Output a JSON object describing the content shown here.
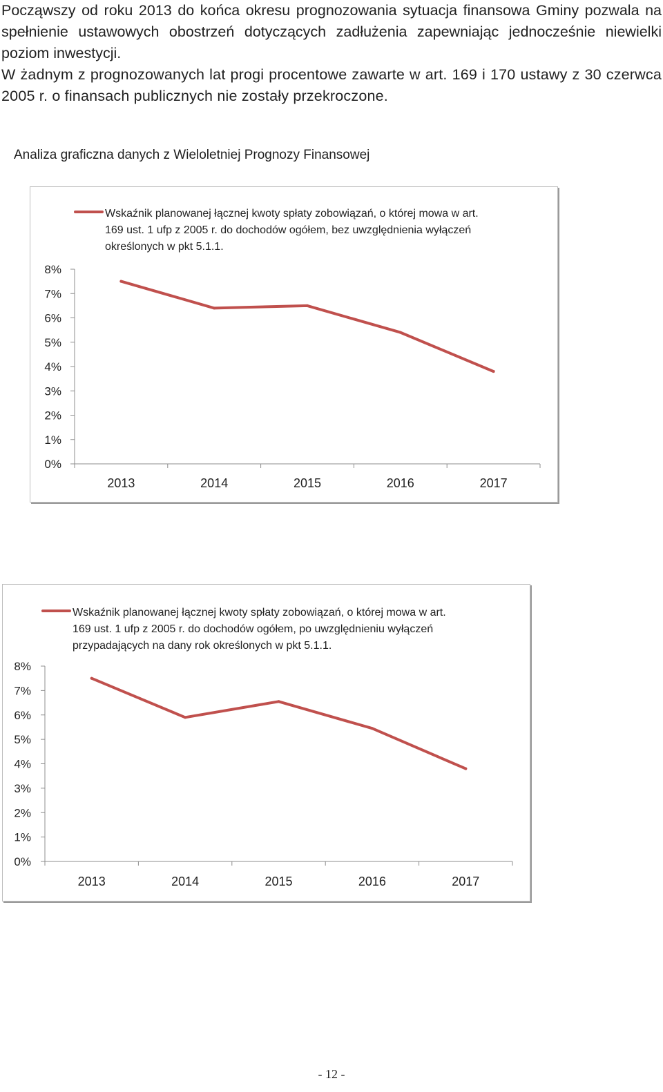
{
  "intro": {
    "paragraph1": "Począwszy od roku 2013 do końca okresu prognozowania sytuacja finansowa Gminy pozwala na spełnienie ustawowych obostrzeń dotyczących zadłużenia zapewniając jednocześnie niewielki poziom inwestycji.",
    "paragraph2": "W żadnym z prognozowanych lat progi procentowe zawarte w art. 169 i 170 ustawy z 30 czerwca 2005 r. o finansach publicznych nie zostały przekroczone."
  },
  "section_title": "Analiza graficzna danych z Wieloletniej Prognozy Finansowej",
  "chart_data": [
    {
      "type": "line",
      "title": "",
      "categories": [
        "2013",
        "2014",
        "2015",
        "2016",
        "2017"
      ],
      "y_ticks": [
        "0%",
        "1%",
        "2%",
        "3%",
        "4%",
        "5%",
        "6%",
        "7%",
        "8%"
      ],
      "ylim": [
        0,
        8
      ],
      "series": [
        {
          "name": "Wskaźnik planowanej łącznej kwoty spłaty zobowiązań, o której mowa w art. 169 ust. 1 ufp z 2005 r. do dochodów ogółem, bez uwzględnienia wyłączeń określonych w pkt 5.1.1.",
          "legend_lines": [
            "Wskaźnik planowanej łącznej kwoty spłaty zobowiązań, o której mowa w art.",
            "169 ust. 1 ufp z 2005 r. do dochodów ogółem, bez uwzględnienia wyłączeń",
            "określonych w pkt 5.1.1."
          ],
          "values": [
            7.5,
            6.4,
            6.5,
            5.4,
            3.8
          ],
          "color": "#c0504d"
        }
      ]
    },
    {
      "type": "line",
      "title": "",
      "categories": [
        "2013",
        "2014",
        "2015",
        "2016",
        "2017"
      ],
      "y_ticks": [
        "0%",
        "1%",
        "2%",
        "3%",
        "4%",
        "5%",
        "6%",
        "7%",
        "8%"
      ],
      "ylim": [
        0,
        8
      ],
      "series": [
        {
          "name": "Wskaźnik planowanej łącznej kwoty spłaty zobowiązań, o której mowa w art. 169 ust. 1 ufp z 2005 r. do dochodów ogółem, po uwzględnieniu wyłączeń przypadających na dany rok określonych w pkt 5.1.1.",
          "legend_lines": [
            "Wskaźnik planowanej łącznej kwoty spłaty zobowiązań, o której mowa w art.",
            "169 ust. 1 ufp z 2005 r. do dochodów ogółem, po uwzględnieniu wyłączeń",
            "przypadających na dany rok określonych w pkt 5.1.1."
          ],
          "values": [
            7.5,
            5.9,
            6.55,
            5.45,
            3.8
          ],
          "color": "#c0504d"
        }
      ]
    }
  ],
  "page_number": "- 12 -"
}
